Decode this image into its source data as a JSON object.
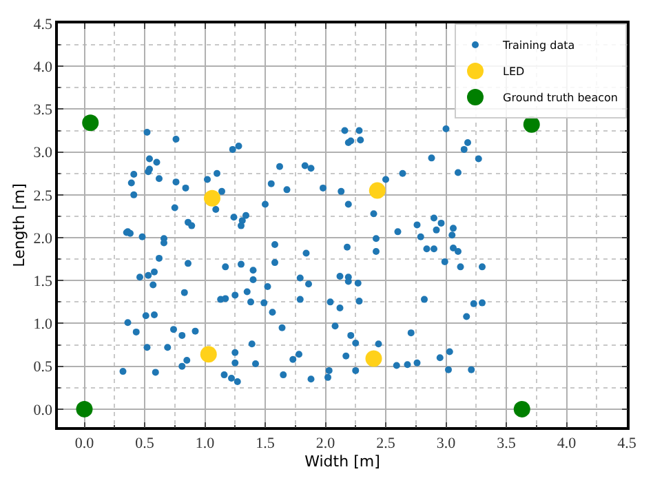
{
  "chart_data": {
    "type": "scatter",
    "xlabel": "Width [m]",
    "ylabel": "Length [m]",
    "xlim": [
      -0.22,
      4.5
    ],
    "ylim": [
      -0.21,
      4.5
    ],
    "xticks": [
      {
        "value": 0,
        "label": "0.0"
      },
      {
        "value": 0.5,
        "label": "0.5"
      },
      {
        "value": 1,
        "label": "1.0"
      },
      {
        "value": 1.5,
        "label": "1.5"
      },
      {
        "value": 2,
        "label": "2.0"
      },
      {
        "value": 2.5,
        "label": "2.5"
      },
      {
        "value": 3,
        "label": "3.0"
      },
      {
        "value": 3.5,
        "label": "3.5"
      },
      {
        "value": 4,
        "label": "4.0"
      },
      {
        "value": 4.5,
        "label": "4.5"
      }
    ],
    "yticks": [
      {
        "value": 0,
        "label": "0.0"
      },
      {
        "value": 0.5,
        "label": "0.5"
      },
      {
        "value": 1,
        "label": "1.0"
      },
      {
        "value": 1.5,
        "label": "1.5"
      },
      {
        "value": 2,
        "label": "2.0"
      },
      {
        "value": 2.5,
        "label": "2.5"
      },
      {
        "value": 3,
        "label": "3.0"
      },
      {
        "value": 3.5,
        "label": "3.5"
      },
      {
        "value": 4,
        "label": "4.0"
      },
      {
        "value": 4.5,
        "label": "4.5"
      }
    ],
    "grid": true,
    "legend": "top right",
    "marker": "circle",
    "series": [
      {
        "name": "Training data",
        "color": "#1f77b4",
        "x": [
          0.52,
          0.76,
          1.23,
          1.28,
          0.54,
          0.6,
          0.41,
          0.54,
          0.53,
          0.62,
          0.39,
          0.41,
          0.76,
          0.84,
          1.02,
          1.1,
          1.14,
          1.09,
          0.75,
          0.86,
          0.89,
          1.24,
          1.34,
          1.31,
          1.3,
          1.5,
          1.55,
          1.62,
          1.68,
          1.83,
          1.88,
          1.98,
          2.13,
          0.36,
          3.0,
          3.15,
          3.18,
          3.27,
          2.88,
          3.1,
          2.64,
          2.5,
          2.16,
          2.28,
          2.29,
          2.19,
          2.21,
          2.19,
          2.4,
          2.76,
          2.9,
          2.96,
          3.06,
          2.92,
          2.6,
          0.35,
          0.38,
          0.48,
          0.66,
          0.66,
          0.62,
          0.86,
          0.46,
          0.53,
          0.58,
          0.57,
          0.83,
          0.36,
          0.51,
          0.58,
          0.43,
          0.74,
          0.81,
          0.92,
          0.52,
          0.69,
          0.85,
          0.81,
          0.32,
          0.59,
          1.17,
          1.3,
          1.4,
          1.4,
          1.52,
          1.58,
          1.58,
          1.84,
          1.79,
          1.86,
          1.79,
          1.35,
          1.38,
          1.25,
          1.13,
          1.17,
          1.49,
          1.56,
          1.64,
          1.39,
          1.25,
          1.25,
          1.42,
          1.16,
          1.22,
          1.27,
          1.65,
          1.78,
          1.73,
          1.88,
          2.03,
          2.02,
          2.04,
          2.08,
          2.12,
          2.12,
          3.05,
          2.79,
          2.42,
          2.42,
          2.18,
          2.84,
          2.9,
          3.06,
          3.1,
          2.99,
          3.12,
          3.3,
          2.19,
          2.19,
          2.27,
          2.28,
          2.82,
          3.23,
          3.3,
          3.17,
          2.21,
          2.25,
          2.44,
          2.71,
          2.17,
          2.59,
          2.68,
          2.76,
          2.95,
          3.03,
          3.02,
          3.21,
          2.25
        ],
        "values": [
          3.23,
          3.15,
          3.03,
          3.07,
          2.92,
          2.88,
          2.74,
          2.8,
          2.77,
          2.69,
          2.64,
          2.5,
          2.65,
          2.58,
          2.68,
          2.75,
          2.54,
          2.33,
          2.35,
          2.18,
          2.14,
          2.24,
          2.26,
          2.2,
          2.14,
          2.39,
          2.63,
          2.83,
          2.56,
          2.84,
          2.81,
          2.58,
          2.54,
          2.07,
          3.27,
          3.03,
          3.11,
          2.92,
          2.93,
          2.76,
          2.75,
          2.68,
          3.25,
          3.25,
          3.14,
          3.11,
          3.13,
          2.39,
          2.28,
          2.15,
          2.23,
          2.17,
          2.11,
          2.09,
          2.07,
          2.06,
          2.05,
          2.01,
          1.99,
          1.94,
          1.76,
          1.7,
          1.54,
          1.56,
          1.6,
          1.45,
          1.36,
          1.01,
          1.09,
          1.1,
          0.9,
          0.93,
          0.86,
          0.91,
          0.72,
          0.72,
          0.57,
          0.5,
          0.44,
          0.43,
          1.66,
          1.69,
          1.62,
          1.51,
          1.43,
          1.92,
          1.71,
          1.82,
          1.53,
          1.46,
          1.28,
          1.37,
          1.25,
          1.33,
          1.28,
          1.29,
          1.24,
          1.13,
          0.95,
          0.76,
          0.66,
          0.54,
          0.53,
          0.4,
          0.36,
          0.32,
          0.4,
          0.64,
          0.58,
          0.35,
          0.45,
          0.37,
          1.25,
          0.97,
          1.18,
          1.55,
          2.03,
          2.01,
          1.99,
          1.84,
          1.89,
          1.87,
          1.87,
          1.88,
          1.84,
          1.72,
          1.66,
          1.66,
          1.54,
          1.49,
          1.47,
          1.26,
          1.28,
          1.23,
          1.24,
          1.08,
          0.86,
          0.77,
          0.76,
          0.89,
          0.62,
          0.51,
          0.52,
          0.54,
          0.6,
          0.67,
          0.46,
          0.46,
          0.45
        ]
      },
      {
        "name": "LED",
        "color": "#ffd11a",
        "x": [
          1.06,
          2.43,
          1.03,
          2.4
        ],
        "values": [
          2.46,
          2.55,
          0.64,
          0.59
        ]
      },
      {
        "name": "Ground truth beacon",
        "color": "#007f00",
        "x": [
          0.05,
          3.71,
          0.0,
          3.63
        ],
        "values": [
          3.34,
          3.32,
          0.0,
          0.0
        ]
      }
    ]
  }
}
